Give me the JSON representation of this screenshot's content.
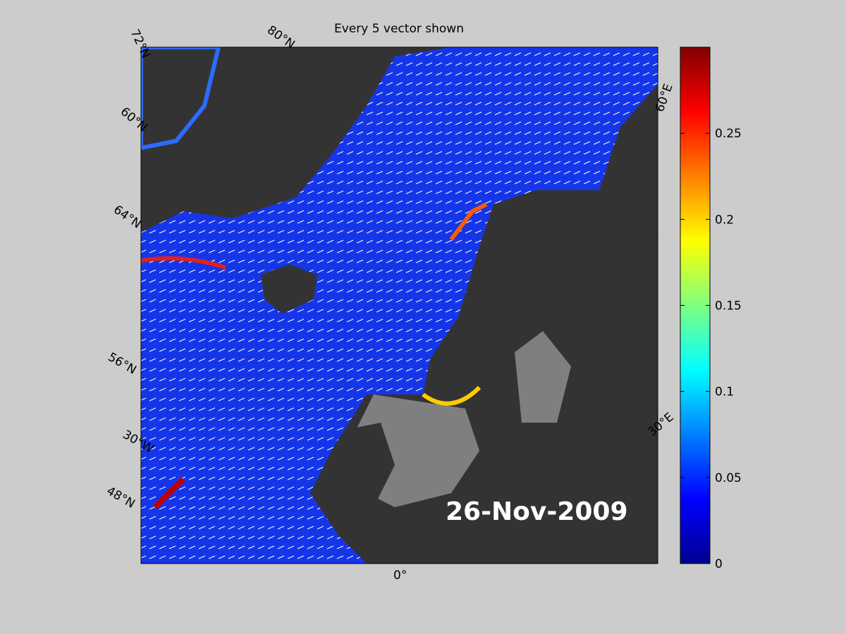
{
  "title": "Every 5 vector shown",
  "date": "26-Nov-2009",
  "map_labels": [
    "72°N",
    "80°N",
    "60°N",
    "64°N",
    "56°N",
    "48°N",
    "30°W",
    "0°",
    "30°E",
    "60°E"
  ],
  "colorbar": {
    "lim": [
      0,
      0.3
    ],
    "ticks": [
      0,
      0.05,
      0.1,
      0.15,
      0.2,
      0.25
    ]
  }
}
